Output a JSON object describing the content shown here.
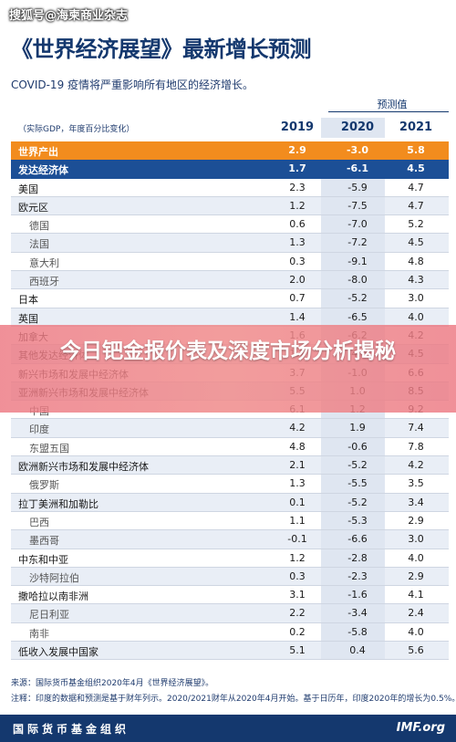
{
  "watermark": "搜狐号@海柬商业杂志",
  "title": "《世界经济展望》最新增长预测",
  "subtitle": "COVID-19 疫情将严重影响所有地区的经济增长。",
  "projection_label": "预测值",
  "unit_label": "（实际GDP，年度百分比变化）",
  "years": [
    "2019",
    "2020",
    "2021"
  ],
  "rows": [
    {
      "name": "世界产出",
      "v": [
        "2.9",
        "-3.0",
        "5.8"
      ],
      "style": "world"
    },
    {
      "name": "发达经济体",
      "v": [
        "1.7",
        "-6.1",
        "4.5"
      ],
      "style": "adv"
    },
    {
      "name": "美国",
      "v": [
        "2.3",
        "-5.9",
        "4.7"
      ],
      "style": "main"
    },
    {
      "name": "欧元区",
      "v": [
        "1.2",
        "-7.5",
        "4.7"
      ],
      "style": "main"
    },
    {
      "name": "德国",
      "v": [
        "0.6",
        "-7.0",
        "5.2"
      ],
      "style": "sub"
    },
    {
      "name": "法国",
      "v": [
        "1.3",
        "-7.2",
        "4.5"
      ],
      "style": "sub"
    },
    {
      "name": "意大利",
      "v": [
        "0.3",
        "-9.1",
        "4.8"
      ],
      "style": "sub"
    },
    {
      "name": "西班牙",
      "v": [
        "2.0",
        "-8.0",
        "4.3"
      ],
      "style": "sub"
    },
    {
      "name": "日本",
      "v": [
        "0.7",
        "-5.2",
        "3.0"
      ],
      "style": "main"
    },
    {
      "name": "英国",
      "v": [
        "1.4",
        "-6.5",
        "4.0"
      ],
      "style": "main"
    },
    {
      "name": "加拿大",
      "v": [
        "1.6",
        "-6.2",
        "4.2"
      ],
      "style": "main"
    },
    {
      "name": "其他发达经济体",
      "v": [
        "1.7",
        "-4.6",
        "4.5"
      ],
      "style": "main"
    },
    {
      "name": "新兴市场和发展中经济体",
      "v": [
        "3.7",
        "-1.0",
        "6.6"
      ],
      "style": "main"
    },
    {
      "name": "亚洲新兴市场和发展中经济体",
      "v": [
        "5.5",
        "1.0",
        "8.5"
      ],
      "style": "main"
    },
    {
      "name": "中国",
      "v": [
        "6.1",
        "1.2",
        "9.2"
      ],
      "style": "sub"
    },
    {
      "name": "印度",
      "v": [
        "4.2",
        "1.9",
        "7.4"
      ],
      "style": "sub"
    },
    {
      "name": "东盟五国",
      "v": [
        "4.8",
        "-0.6",
        "7.8"
      ],
      "style": "sub"
    },
    {
      "name": "欧洲新兴市场和发展中经济体",
      "v": [
        "2.1",
        "-5.2",
        "4.2"
      ],
      "style": "main"
    },
    {
      "name": "俄罗斯",
      "v": [
        "1.3",
        "-5.5",
        "3.5"
      ],
      "style": "sub"
    },
    {
      "name": "拉丁美洲和加勒比",
      "v": [
        "0.1",
        "-5.2",
        "3.4"
      ],
      "style": "main"
    },
    {
      "name": "巴西",
      "v": [
        "1.1",
        "-5.3",
        "2.9"
      ],
      "style": "sub"
    },
    {
      "name": "墨西哥",
      "v": [
        "-0.1",
        "-6.6",
        "3.0"
      ],
      "style": "sub"
    },
    {
      "name": "中东和中亚",
      "v": [
        "1.2",
        "-2.8",
        "4.0"
      ],
      "style": "main"
    },
    {
      "name": "沙特阿拉伯",
      "v": [
        "0.3",
        "-2.3",
        "2.9"
      ],
      "style": "sub"
    },
    {
      "name": "撒哈拉以南非洲",
      "v": [
        "3.1",
        "-1.6",
        "4.1"
      ],
      "style": "main"
    },
    {
      "name": "尼日利亚",
      "v": [
        "2.2",
        "-3.4",
        "2.4"
      ],
      "style": "sub"
    },
    {
      "name": "南非",
      "v": [
        "0.2",
        "-5.8",
        "4.0"
      ],
      "style": "sub"
    },
    {
      "name": "低收入发展中国家",
      "v": [
        "5.1",
        "0.4",
        "5.6"
      ],
      "style": "main"
    }
  ],
  "banner": "今日钯金报价表及深度市场分析揭秘",
  "source": "来源：国际货币基金组织2020年4月《世界经济展望》。",
  "note": "注释：印度的数据和预测是基于财年列示。2020/2021财年从2020年4月开始。基于日历年，印度2020年的增长为0.5%。",
  "footer": {
    "org": "国际货币基金组织",
    "site": "IMF.org"
  }
}
